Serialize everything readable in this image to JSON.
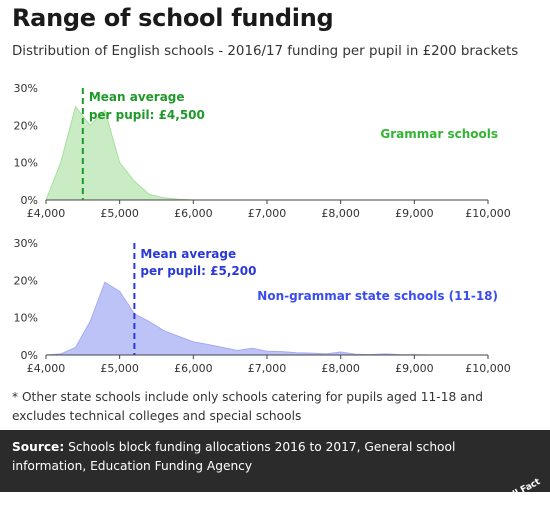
{
  "header": {
    "title": "Range of school funding",
    "subtitle": "Distribution of English schools - 2016/17 funding per pupil in £200 brackets"
  },
  "colors": {
    "grammar_fill": "#c9ecc4",
    "grammar_stroke": "#a8dea0",
    "grammar_text": "#33b433",
    "grammar_mean": "#1f9a2a",
    "nongrammar_fill": "#bec3f7",
    "nongrammar_stroke": "#a4abf2",
    "nongrammar_text": "#3b4cf0",
    "nongrammar_mean": "#2a39d8",
    "footer_bg": "#2b2b2b"
  },
  "chart_data": [
    {
      "type": "area",
      "series_name": "Grammar schools",
      "x": [
        4000,
        4200,
        4400,
        4600,
        4800,
        5000,
        5200,
        5400,
        5600,
        5800,
        6000,
        6200,
        6400,
        6600,
        6800,
        7000,
        7200,
        7400,
        7600,
        7800,
        8000,
        8200,
        8400,
        8600,
        8800,
        9000,
        9200,
        9400,
        9600,
        9800,
        10000
      ],
      "values": [
        0,
        10,
        25,
        20,
        24,
        10,
        5,
        1.5,
        0.6,
        0.2,
        0,
        0,
        0,
        0,
        0,
        0,
        0,
        0,
        0,
        0,
        0,
        0,
        0,
        0,
        0,
        0,
        0,
        0,
        0,
        0,
        0
      ],
      "mean": {
        "value": 4500,
        "label_line1": "Mean average",
        "label_line2": "per pupil: £4,500"
      },
      "xlim": [
        4000,
        10000
      ],
      "ylim": [
        0,
        30
      ],
      "x_ticks": [
        4000,
        5000,
        6000,
        7000,
        8000,
        9000,
        10000
      ],
      "x_tick_labels": [
        "£4,000",
        "£5,000",
        "£6,000",
        "£7,000",
        "£8,000",
        "£9,000",
        "£10,000"
      ],
      "y_ticks": [
        0,
        10,
        20,
        30
      ],
      "y_tick_labels": [
        "0%",
        "10%",
        "20%",
        "30%"
      ]
    },
    {
      "type": "area",
      "series_name": "Non-grammar state schools (11-18)",
      "x": [
        4000,
        4200,
        4400,
        4600,
        4800,
        5000,
        5200,
        5400,
        5600,
        5800,
        6000,
        6200,
        6400,
        6600,
        6800,
        7000,
        7200,
        7400,
        7600,
        7800,
        8000,
        8200,
        8400,
        8600,
        8800,
        9000,
        9200,
        9400,
        9600,
        9800,
        10000
      ],
      "values": [
        0,
        0.3,
        2,
        9,
        19.5,
        17,
        11,
        9,
        6.5,
        5,
        3.5,
        2.8,
        2,
        1.2,
        1.8,
        1,
        0.9,
        0.6,
        0.5,
        0.3,
        0.8,
        0.2,
        0.1,
        0.3,
        0.1,
        0.05,
        0,
        0,
        0,
        0,
        0
      ],
      "mean": {
        "value": 5200,
        "label_line1": "Mean average",
        "label_line2": "per pupil: £5,200"
      },
      "xlim": [
        4000,
        10000
      ],
      "ylim": [
        0,
        30
      ],
      "x_ticks": [
        4000,
        5000,
        6000,
        7000,
        8000,
        9000,
        10000
      ],
      "x_tick_labels": [
        "£4,000",
        "£5,000",
        "£6,000",
        "£7,000",
        "£8,000",
        "£9,000",
        "£10,000"
      ],
      "y_ticks": [
        0,
        10,
        20,
        30
      ],
      "y_tick_labels": [
        "0%",
        "10%",
        "20%",
        "30%"
      ]
    }
  ],
  "footnote": "* Other state schools include only schools catering for pupils aged 11-18 and excludes technical colleges and special schools",
  "footer": {
    "source_label": "Source:",
    "source_text": "Schools block funding allocations 2016 to 2017, General school information, Education Funding Agency",
    "brand": "Full Fact"
  }
}
